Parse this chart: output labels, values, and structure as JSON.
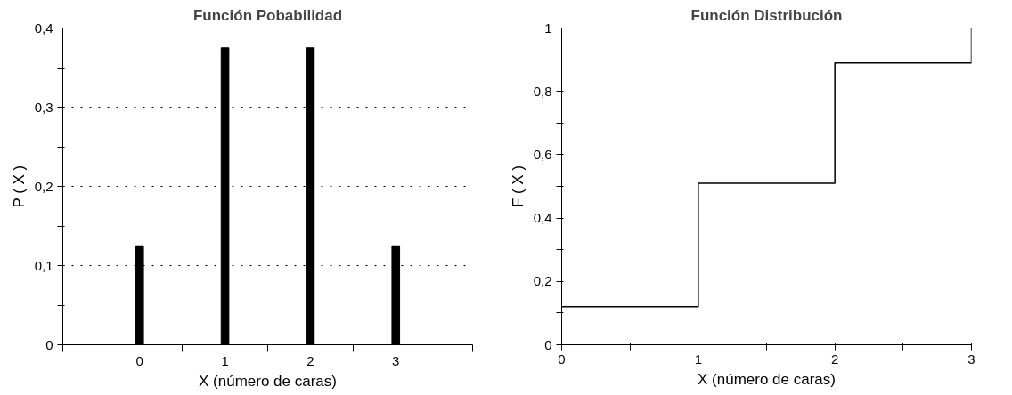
{
  "chart_data": [
    {
      "type": "bar",
      "title": "Función Pobabilidad",
      "xlabel": "X (número de caras)",
      "ylabel": "P ( X )",
      "categories": [
        "0",
        "1",
        "2",
        "3"
      ],
      "series": [
        {
          "color": "#000000",
          "values": [
            0.125,
            0.375,
            0.375,
            0.125
          ]
        }
      ],
      "ylim": [
        0,
        0.4
      ],
      "yticks": [
        {
          "value": 0,
          "label": "0"
        },
        {
          "value": 0.05,
          "label": null
        },
        {
          "value": 0.1,
          "label": "0,1"
        },
        {
          "value": 0.15,
          "label": null
        },
        {
          "value": 0.2,
          "label": "0,2"
        },
        {
          "value": 0.25,
          "label": null
        },
        {
          "value": 0.3,
          "label": "0,3"
        },
        {
          "value": 0.35,
          "label": null
        },
        {
          "value": 0.4,
          "label": "0,4"
        }
      ],
      "grid": "y",
      "line_style": "dotted"
    },
    {
      "type": "step",
      "title": "Función Distribución",
      "xlabel": "X (número de caras)",
      "ylabel": "F ( X )",
      "x": [
        0,
        1,
        2,
        3
      ],
      "series": [
        {
          "color": "#000000",
          "values": [
            0.12,
            0.51,
            0.89,
            1.0
          ]
        }
      ],
      "xlim": [
        0,
        3
      ],
      "xticks": [
        0,
        {
          "value": 0.5,
          "label": null
        },
        1,
        {
          "value": 1.5,
          "label": null
        },
        2,
        {
          "value": 2.5,
          "label": null
        },
        3
      ],
      "ylim": [
        0,
        1
      ],
      "yticks": [
        0,
        {
          "value": 0.1,
          "label": null
        },
        {
          "value": 0.2,
          "label": "0,2"
        },
        {
          "value": 0.3,
          "label": null
        },
        {
          "value": 0.4,
          "label": "0,4"
        },
        {
          "value": 0.5,
          "label": null
        },
        {
          "value": 0.6,
          "label": "0,6"
        },
        {
          "value": 0.7,
          "label": null
        },
        {
          "value": 0.8,
          "label": "0,8"
        },
        {
          "value": 0.9,
          "label": null
        },
        1
      ],
      "grid": false
    }
  ]
}
